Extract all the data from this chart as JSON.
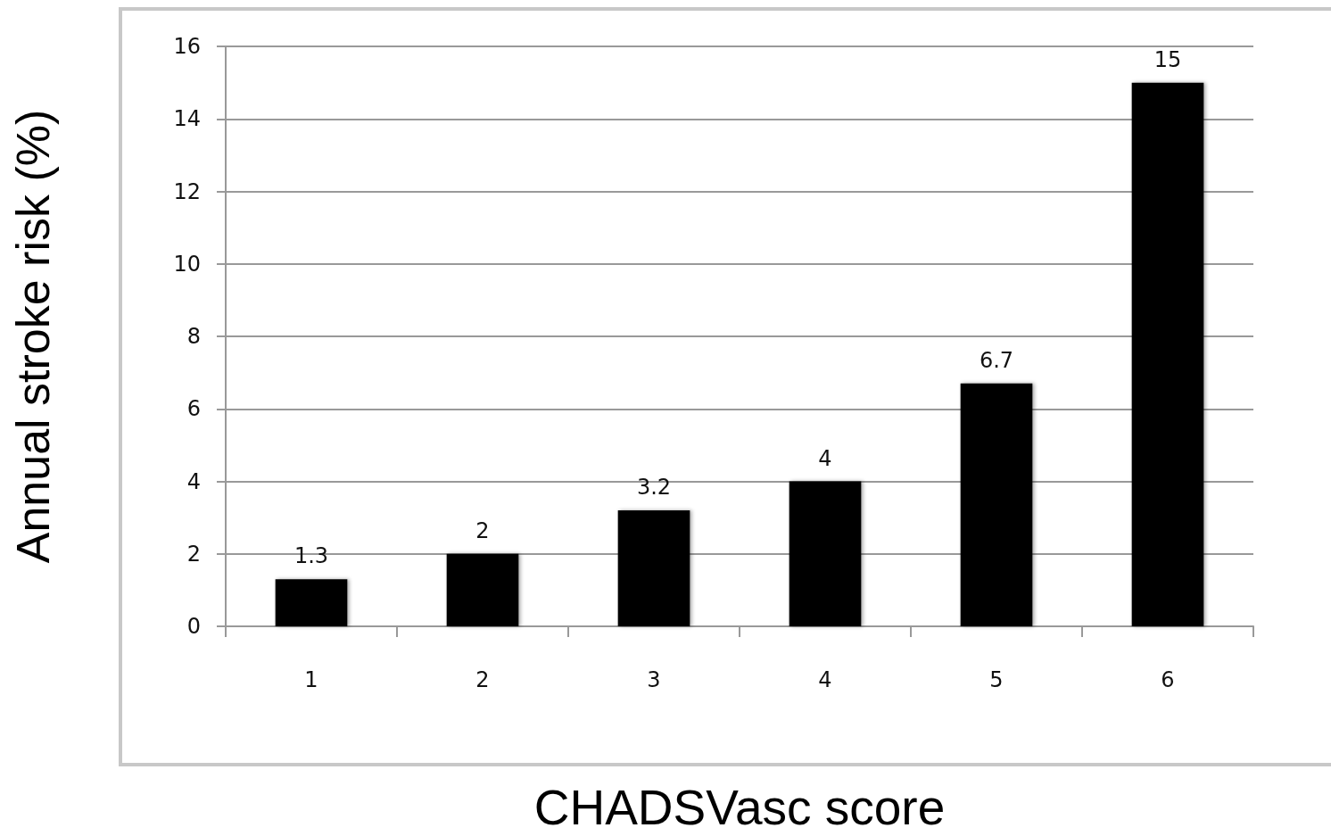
{
  "chart_data": {
    "type": "bar",
    "xlabel": "CHADSVasc score",
    "ylabel": "Annual stroke risk (%)",
    "categories": [
      "1",
      "2",
      "3",
      "4",
      "5",
      "6"
    ],
    "values": [
      1.3,
      2,
      3.2,
      4,
      6.7,
      15
    ],
    "color": "#000000",
    "ylim": [
      0,
      16
    ],
    "yticks": [
      0,
      2,
      4,
      6,
      8,
      10,
      12,
      14,
      16
    ],
    "grid": "y",
    "data_labels": true
  }
}
